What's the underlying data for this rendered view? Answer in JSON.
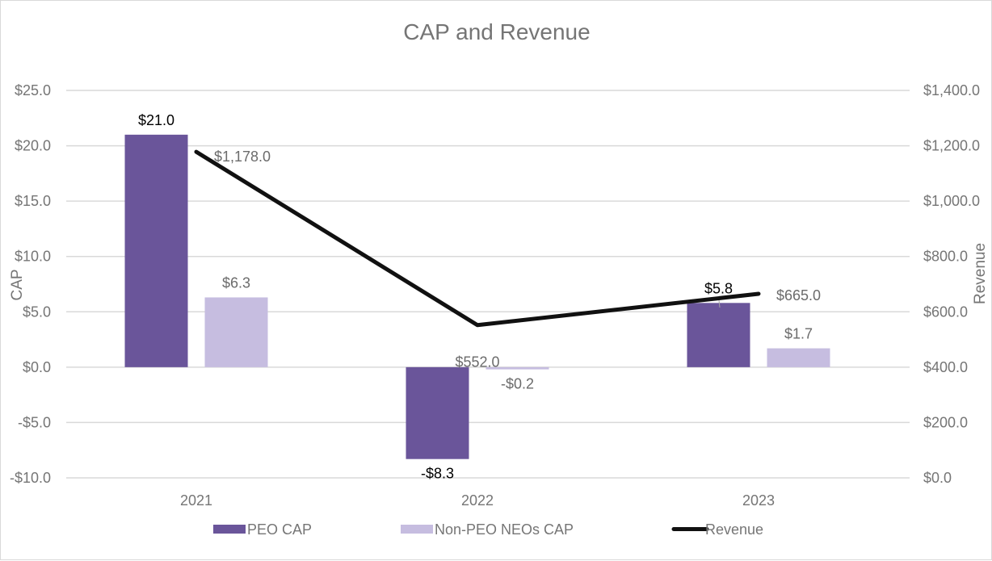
{
  "chart_data": {
    "type": "bar",
    "title": "CAP and Revenue",
    "categories": [
      "2021",
      "2022",
      "2023"
    ],
    "series": [
      {
        "name": "PEO CAP",
        "type": "bar",
        "axis": "left",
        "color": "#6a559a",
        "values": [
          21.0,
          -8.3,
          5.8
        ],
        "labels": [
          "$21.0",
          "-$8.3",
          "$5.8"
        ]
      },
      {
        "name": "Non-PEO NEOs CAP",
        "type": "bar",
        "axis": "left",
        "color": "#c6bde0",
        "values": [
          6.3,
          -0.2,
          1.7
        ],
        "labels": [
          "$6.3",
          "-$0.2",
          "$1.7"
        ]
      },
      {
        "name": "Revenue",
        "type": "line",
        "axis": "right",
        "color": "#111111",
        "values": [
          1178.0,
          552.0,
          665.0
        ],
        "labels": [
          "$1,178.0",
          "$552.0",
          "$665.0"
        ]
      }
    ],
    "left_axis": {
      "label": "CAP",
      "range": [
        -10,
        25
      ],
      "ticks": [
        25,
        20,
        15,
        10,
        5,
        0,
        -5,
        -10
      ],
      "tick_labels": [
        "$25.0",
        "$20.0",
        "$15.0",
        "$10.0",
        "$5.0",
        "$0.0",
        "-$5.0",
        "-$10.0"
      ]
    },
    "right_axis": {
      "label": "Revenue",
      "range": [
        0,
        1400
      ],
      "ticks": [
        1400,
        1200,
        1000,
        800,
        600,
        400,
        200,
        0
      ],
      "tick_labels": [
        "$1,400.0",
        "$1,200.0",
        "$1,000.0",
        "$800.0",
        "$600.0",
        "$400.0",
        "$200.0",
        "$0.0"
      ]
    },
    "xlabel": "",
    "grid": true,
    "legend_position": "bottom"
  }
}
